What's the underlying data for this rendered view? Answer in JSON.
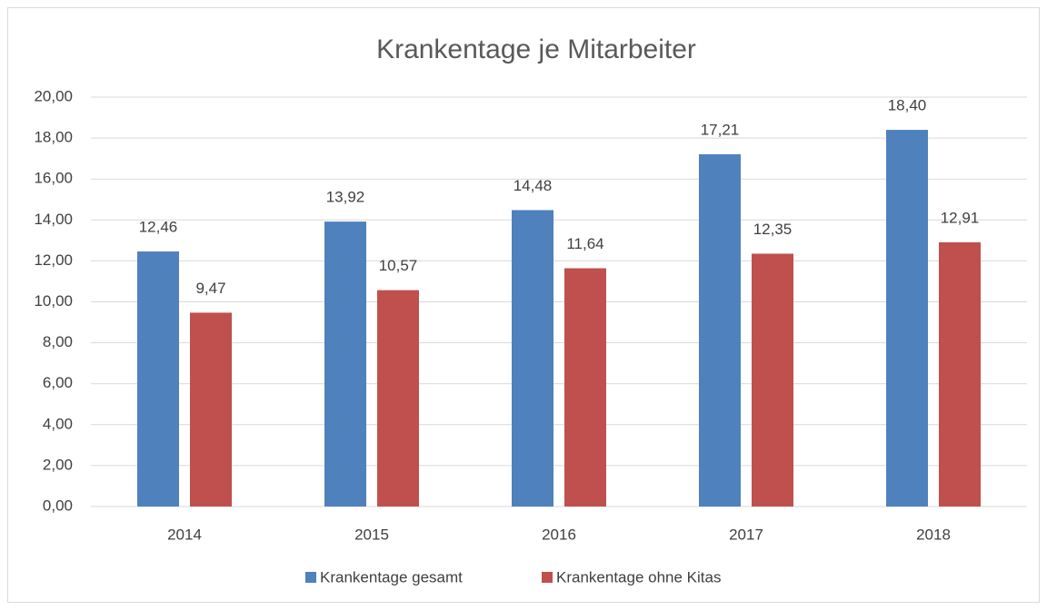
{
  "chart_data": {
    "type": "bar",
    "title": "Krankentage je Mitarbeiter",
    "categories": [
      "2014",
      "2015",
      "2016",
      "2017",
      "2018"
    ],
    "series": [
      {
        "name": "Krankentage gesamt",
        "color": "#4f81bd",
        "values": [
          12.46,
          13.92,
          14.48,
          17.21,
          18.4
        ],
        "value_labels": [
          "12,46",
          "13,92",
          "14,48",
          "17,21",
          "18,40"
        ]
      },
      {
        "name": "Krankentage ohne Kitas",
        "color": "#c0504d",
        "values": [
          9.47,
          10.57,
          11.64,
          12.35,
          12.91
        ],
        "value_labels": [
          "9,47",
          "10,57",
          "11,64",
          "12,35",
          "12,91"
        ]
      }
    ],
    "ylim": [
      0,
      20
    ],
    "yticks": [
      {
        "value": 0,
        "label": "0,00"
      },
      {
        "value": 2,
        "label": "2,00"
      },
      {
        "value": 4,
        "label": "4,00"
      },
      {
        "value": 6,
        "label": "6,00"
      },
      {
        "value": 8,
        "label": "8,00"
      },
      {
        "value": 10,
        "label": "10,00"
      },
      {
        "value": 12,
        "label": "12,00"
      },
      {
        "value": 14,
        "label": "14,00"
      },
      {
        "value": 16,
        "label": "16,00"
      },
      {
        "value": 18,
        "label": "18,00"
      },
      {
        "value": 20,
        "label": "20,00"
      }
    ],
    "grid": true,
    "legend": "bottom"
  }
}
